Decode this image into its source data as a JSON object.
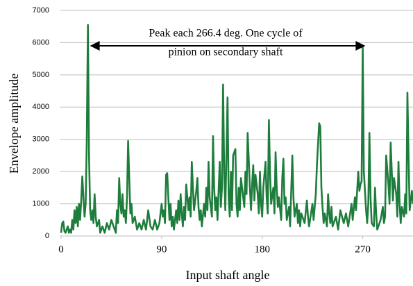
{
  "chart_data": {
    "type": "line",
    "ylabel": "Envelope amplitude",
    "xlabel": "Input shaft angle",
    "annotation": [
      "Peak each 266.4 deg. One cycle of",
      "pinion on secondary shaft"
    ],
    "color": "#1e7d3c",
    "grid": true,
    "xlim": [
      -1,
      315
    ],
    "ylim": [
      0,
      7000
    ],
    "xticks": [
      0,
      90,
      180,
      270
    ],
    "yticks": [
      0,
      1000,
      2000,
      3000,
      4000,
      5000,
      6000,
      7000
    ],
    "x": [
      0,
      1,
      2,
      3,
      4,
      6,
      7,
      8,
      9,
      10,
      11,
      12,
      13,
      14,
      15,
      16,
      17,
      18,
      19,
      20,
      21,
      22,
      23,
      24,
      25,
      26,
      27,
      28,
      29,
      30,
      31,
      32,
      34,
      35,
      37,
      39,
      41,
      43,
      45,
      47,
      49,
      50,
      51,
      52,
      53,
      54,
      55,
      56,
      57,
      58,
      59,
      60,
      61,
      62,
      63,
      64,
      66,
      68,
      70,
      72,
      74,
      76,
      78,
      80,
      82,
      84,
      86,
      88,
      90,
      91,
      92,
      93,
      94,
      95,
      96,
      97,
      98,
      99,
      100,
      101,
      103,
      104,
      105,
      106,
      107,
      108,
      109,
      110,
      111,
      112,
      114,
      115,
      116,
      117,
      118,
      119,
      121,
      122,
      123,
      124,
      125,
      126,
      128,
      129,
      130,
      131,
      132,
      133,
      135,
      136,
      137,
      138,
      139,
      140,
      142,
      143,
      144,
      145,
      146,
      147,
      149,
      150,
      151,
      152,
      153,
      154,
      156,
      157,
      158,
      159,
      160,
      161,
      163,
      164,
      165,
      166,
      167,
      169,
      170,
      171,
      172,
      173,
      174,
      176,
      177,
      178,
      179,
      180,
      181,
      183,
      184,
      185,
      186,
      187,
      188,
      190,
      191,
      192,
      193,
      194,
      195,
      197,
      198,
      199,
      200,
      201,
      202,
      204,
      205,
      206,
      207,
      208,
      209,
      211,
      212,
      213,
      214,
      215,
      218,
      220,
      221,
      222,
      225,
      226,
      228,
      229,
      231,
      232,
      233,
      234,
      235,
      236,
      238,
      239,
      240,
      241,
      242,
      243,
      246,
      248,
      250,
      253,
      255,
      257,
      260,
      261,
      263,
      264,
      266,
      267,
      268,
      269,
      270,
      271,
      273,
      274,
      275,
      276,
      277,
      278,
      280,
      281,
      282,
      283,
      286,
      288,
      289,
      290,
      291,
      293,
      294,
      295,
      296,
      297,
      298,
      300,
      301,
      302,
      303,
      304,
      305,
      307,
      308,
      309,
      310,
      311,
      312,
      314,
      315
    ],
    "values": [
      100,
      400,
      450,
      150,
      100,
      300,
      100,
      200,
      100,
      500,
      200,
      800,
      400,
      900,
      300,
      1000,
      500,
      1100,
      1850,
      1200,
      600,
      1000,
      3000,
      6550,
      2500,
      800,
      500,
      800,
      400,
      1300,
      600,
      300,
      500,
      100,
      300,
      100,
      400,
      200,
      500,
      300,
      100,
      800,
      400,
      1800,
      1000,
      700,
      1300,
      600,
      800,
      400,
      1200,
      2950,
      1800,
      700,
      1000,
      400,
      600,
      200,
      400,
      200,
      500,
      200,
      800,
      300,
      200,
      500,
      200,
      400,
      1000,
      600,
      800,
      400,
      1900,
      1950,
      1200,
      500,
      1000,
      300,
      600,
      200,
      800,
      400,
      1100,
      500,
      1300,
      700,
      300,
      900,
      500,
      1600,
      800,
      1200,
      600,
      2300,
      1500,
      800,
      1400,
      1800,
      900,
      500,
      800,
      300,
      1000,
      600,
      1500,
      800,
      2300,
      1200,
      600,
      3100,
      1500,
      800,
      1200,
      500,
      2300,
      900,
      1500,
      4700,
      2000,
      800,
      4300,
      1200,
      600,
      2000,
      800,
      2500,
      2700,
      1000,
      600,
      1500,
      800,
      1800,
      1200,
      900,
      2000,
      1300,
      3200,
      1500,
      800,
      1600,
      2200,
      1100,
      1900,
      1300,
      700,
      2000,
      1000,
      600,
      1500,
      2300,
      1200,
      700,
      3600,
      2000,
      1000,
      1500,
      700,
      2600,
      1500,
      900,
      1200,
      500,
      1800,
      2400,
      1000,
      1200,
      500,
      900,
      300,
      1400,
      2500,
      1200,
      600,
      1000,
      400,
      800,
      300,
      700,
      400,
      1100,
      600,
      300,
      1000,
      500,
      1300,
      2200,
      3500,
      3400,
      1500,
      900,
      400,
      700,
      300,
      1300,
      700,
      400,
      900,
      300,
      600,
      200,
      800,
      400,
      700,
      300,
      1000,
      500,
      1200,
      800,
      2000,
      1400,
      1600,
      1700,
      5900,
      2000,
      800,
      400,
      1000,
      3200,
      1200,
      400,
      300,
      1500,
      700,
      200,
      500,
      900,
      400,
      600,
      2500,
      1600,
      1000,
      2900,
      2000,
      1100,
      1800,
      1300,
      600,
      2300,
      1000,
      400,
      900,
      600,
      1300,
      700,
      4450,
      2500,
      800,
      1400,
      1000
    ]
  }
}
